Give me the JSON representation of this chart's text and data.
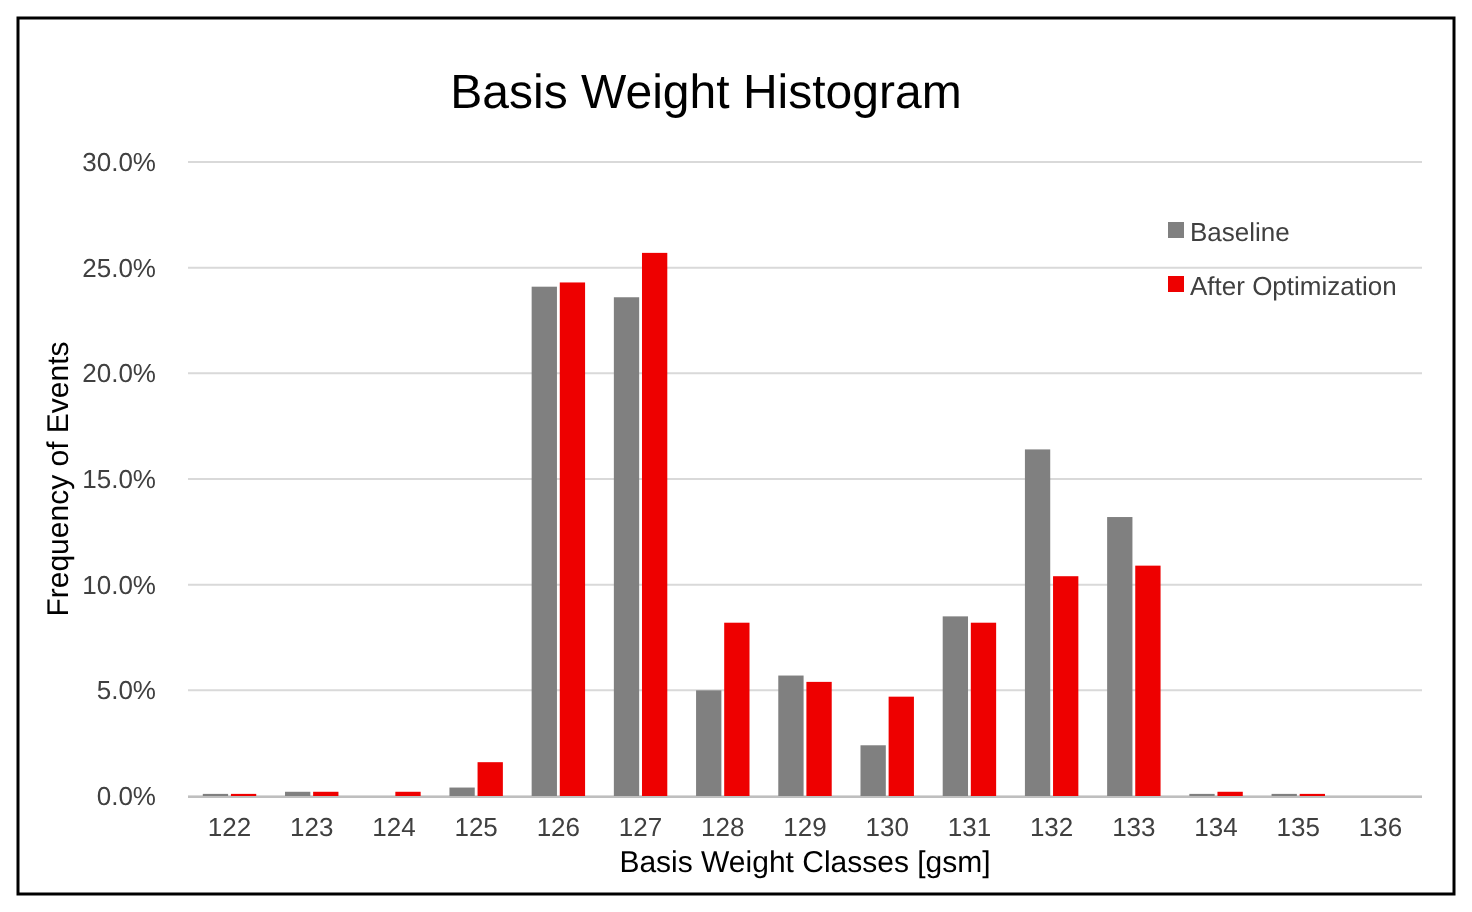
{
  "chart_data": {
    "type": "bar",
    "title": "Basis Weight Histogram",
    "xlabel": "Basis Weight Classes [gsm]",
    "ylabel": "Frequency of Events",
    "categories": [
      "122",
      "123",
      "124",
      "125",
      "126",
      "127",
      "128",
      "129",
      "130",
      "131",
      "132",
      "133",
      "134",
      "135",
      "136"
    ],
    "series": [
      {
        "name": "Baseline",
        "color": "#808080",
        "values": [
          0.1,
          0.2,
          0,
          0.4,
          24.1,
          23.6,
          5.0,
          5.7,
          2.4,
          8.5,
          16.4,
          13.2,
          0.1,
          0.1,
          0
        ]
      },
      {
        "name": "After Optimization",
        "color": "#ee0000",
        "values": [
          0.1,
          0.2,
          0.2,
          1.6,
          24.3,
          25.7,
          8.2,
          5.4,
          4.7,
          8.2,
          10.4,
          10.9,
          0.2,
          0.1,
          0
        ]
      }
    ],
    "ylim": [
      0,
      30
    ],
    "yticks": [
      {
        "value": 0,
        "label": "0.0%"
      },
      {
        "value": 5,
        "label": "5.0%"
      },
      {
        "value": 10,
        "label": "10.0%"
      },
      {
        "value": 15,
        "label": "15.0%"
      },
      {
        "value": 20,
        "label": "20.0%"
      },
      {
        "value": 25,
        "label": "25.0%"
      },
      {
        "value": 30,
        "label": "30.0%"
      }
    ],
    "grid": "y",
    "legend": "top right"
  }
}
